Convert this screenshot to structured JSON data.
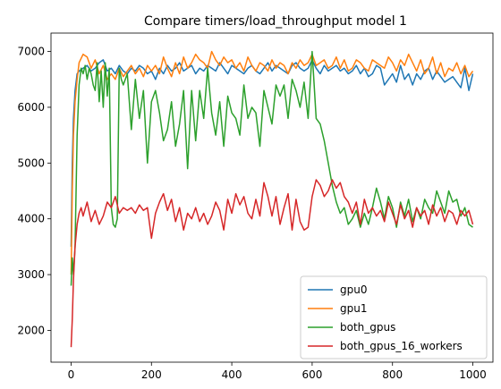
{
  "chart_data": {
    "type": "line",
    "title": "Compare timers/load_throughput model 1",
    "xlabel": "",
    "ylabel": "",
    "xlim": [
      -50,
      1050
    ],
    "ylim": [
      1430,
      7330
    ],
    "xticks": [
      0,
      200,
      400,
      600,
      800,
      1000
    ],
    "yticks": [
      2000,
      3000,
      4000,
      5000,
      6000,
      7000
    ],
    "legend": "lower-right",
    "series": [
      {
        "name": "gpu0",
        "color": "#1f77b4",
        "x": [
          0,
          3,
          6,
          10,
          15,
          20,
          30,
          40,
          50,
          60,
          70,
          80,
          90,
          100,
          110,
          120,
          130,
          140,
          150,
          160,
          170,
          180,
          190,
          200,
          210,
          220,
          230,
          240,
          250,
          260,
          270,
          280,
          290,
          300,
          310,
          320,
          330,
          340,
          350,
          360,
          370,
          380,
          390,
          400,
          410,
          420,
          430,
          440,
          450,
          460,
          470,
          480,
          490,
          500,
          510,
          520,
          530,
          540,
          550,
          560,
          570,
          580,
          590,
          600,
          610,
          620,
          630,
          640,
          650,
          660,
          670,
          680,
          690,
          700,
          710,
          720,
          730,
          740,
          750,
          760,
          770,
          780,
          790,
          800,
          810,
          820,
          830,
          840,
          850,
          860,
          870,
          880,
          890,
          900,
          910,
          920,
          930,
          940,
          950,
          960,
          970,
          980,
          990,
          1000
        ],
        "y": [
          3500,
          5000,
          5800,
          6300,
          6600,
          6650,
          6700,
          6750,
          6650,
          6700,
          6800,
          6850,
          6650,
          6700,
          6600,
          6750,
          6650,
          6600,
          6700,
          6650,
          6750,
          6700,
          6600,
          6650,
          6500,
          6700,
          6600,
          6750,
          6650,
          6700,
          6800,
          6650,
          6700,
          6750,
          6600,
          6700,
          6650,
          6750,
          6700,
          6650,
          6800,
          6700,
          6600,
          6750,
          6700,
          6650,
          6600,
          6700,
          6750,
          6650,
          6600,
          6700,
          6800,
          6650,
          6750,
          6700,
          6650,
          6600,
          6750,
          6800,
          6700,
          6650,
          6700,
          6850,
          6700,
          6600,
          6750,
          6650,
          6700,
          6750,
          6650,
          6700,
          6600,
          6650,
          6750,
          6600,
          6700,
          6550,
          6600,
          6750,
          6700,
          6400,
          6500,
          6600,
          6450,
          6750,
          6500,
          6600,
          6400,
          6600,
          6500,
          6650,
          6700,
          6500,
          6650,
          6550,
          6450,
          6500,
          6550,
          6450,
          6350,
          6700,
          6300,
          6600
        ]
      },
      {
        "name": "gpu1",
        "color": "#ff7f0e",
        "x": [
          0,
          3,
          6,
          10,
          15,
          20,
          30,
          40,
          50,
          60,
          70,
          80,
          90,
          100,
          110,
          120,
          130,
          140,
          150,
          160,
          170,
          180,
          190,
          200,
          210,
          220,
          230,
          240,
          250,
          260,
          270,
          280,
          290,
          300,
          310,
          320,
          330,
          340,
          350,
          360,
          370,
          380,
          390,
          400,
          410,
          420,
          430,
          440,
          450,
          460,
          470,
          480,
          490,
          500,
          510,
          520,
          530,
          540,
          550,
          560,
          570,
          580,
          590,
          600,
          610,
          620,
          630,
          640,
          650,
          660,
          670,
          680,
          690,
          700,
          710,
          720,
          730,
          740,
          750,
          760,
          770,
          780,
          790,
          800,
          810,
          820,
          830,
          840,
          850,
          860,
          870,
          880,
          890,
          900,
          910,
          920,
          930,
          940,
          950,
          960,
          970,
          980,
          990,
          1000
        ],
        "y": [
          3000,
          4500,
          5500,
          6100,
          6500,
          6800,
          6950,
          6900,
          6700,
          6850,
          6600,
          6750,
          6500,
          6600,
          6500,
          6700,
          6550,
          6650,
          6750,
          6600,
          6700,
          6550,
          6750,
          6650,
          6750,
          6600,
          6900,
          6700,
          6550,
          6800,
          6600,
          6900,
          6700,
          6800,
          6950,
          6850,
          6800,
          6700,
          7000,
          6850,
          6750,
          6900,
          6800,
          6850,
          6700,
          6800,
          6650,
          6900,
          6750,
          6650,
          6800,
          6750,
          6650,
          6850,
          6700,
          6800,
          6750,
          6600,
          6800,
          6700,
          6850,
          6750,
          6800,
          6950,
          6750,
          6800,
          6850,
          6700,
          6750,
          6900,
          6700,
          6850,
          6650,
          6700,
          6850,
          6800,
          6700,
          6650,
          6850,
          6800,
          6750,
          6700,
          6900,
          6800,
          6650,
          6850,
          6750,
          6950,
          6800,
          6650,
          6850,
          6600,
          6700,
          6900,
          6600,
          6800,
          6550,
          6700,
          6650,
          6800,
          6600,
          6750,
          6550,
          6650
        ]
      },
      {
        "name": "both_gpus",
        "color": "#2ca02c",
        "x": [
          0,
          3,
          6,
          10,
          15,
          20,
          25,
          30,
          35,
          40,
          45,
          50,
          55,
          60,
          65,
          70,
          75,
          80,
          85,
          90,
          95,
          100,
          105,
          110,
          115,
          120,
          125,
          130,
          140,
          150,
          160,
          170,
          180,
          190,
          200,
          210,
          220,
          230,
          240,
          250,
          260,
          270,
          280,
          290,
          300,
          310,
          320,
          330,
          340,
          350,
          360,
          370,
          380,
          390,
          400,
          410,
          420,
          430,
          440,
          450,
          460,
          470,
          480,
          490,
          500,
          510,
          520,
          530,
          540,
          550,
          560,
          570,
          580,
          590,
          600,
          610,
          620,
          630,
          640,
          650,
          660,
          670,
          680,
          690,
          700,
          710,
          720,
          730,
          740,
          750,
          760,
          770,
          780,
          790,
          800,
          810,
          820,
          830,
          840,
          850,
          860,
          870,
          880,
          890,
          900,
          910,
          920,
          930,
          940,
          950,
          960,
          970,
          980,
          990,
          1000
        ],
        "y": [
          2800,
          3300,
          3000,
          3500,
          5500,
          6400,
          6700,
          6600,
          6750,
          6500,
          6700,
          6600,
          6400,
          6300,
          6800,
          6100,
          6650,
          6000,
          6800,
          6200,
          6700,
          4200,
          3900,
          3850,
          4000,
          6700,
          6500,
          6400,
          6600,
          5600,
          6500,
          5800,
          6300,
          5000,
          6100,
          6300,
          5900,
          5400,
          5600,
          6100,
          5300,
          5700,
          6300,
          4900,
          6300,
          5400,
          6300,
          5800,
          6700,
          5900,
          5500,
          6100,
          5300,
          6200,
          5900,
          5800,
          5500,
          6400,
          5800,
          6000,
          5900,
          5300,
          6300,
          6000,
          5700,
          6400,
          6200,
          6400,
          5800,
          6500,
          6300,
          6000,
          6450,
          5800,
          7000,
          5800,
          5700,
          5400,
          5000,
          4600,
          4300,
          4100,
          4200,
          3900,
          4000,
          4150,
          3850,
          4100,
          3900,
          4200,
          4550,
          4300,
          4000,
          4400,
          4200,
          3850,
          4300,
          4050,
          4350,
          3950,
          4200,
          4000,
          4350,
          4200,
          4100,
          4500,
          4300,
          4100,
          4500,
          4300,
          4350,
          4050,
          4200,
          3900,
          3850
        ]
      },
      {
        "name": "both_gpus_16_workers",
        "color": "#d62728",
        "x": [
          0,
          3,
          6,
          10,
          15,
          20,
          25,
          30,
          40,
          50,
          60,
          70,
          80,
          90,
          100,
          110,
          120,
          130,
          140,
          150,
          160,
          170,
          180,
          190,
          200,
          210,
          220,
          230,
          240,
          250,
          260,
          270,
          280,
          290,
          300,
          310,
          320,
          330,
          340,
          350,
          360,
          370,
          380,
          390,
          400,
          410,
          420,
          430,
          440,
          450,
          460,
          470,
          480,
          490,
          500,
          510,
          520,
          530,
          540,
          550,
          560,
          570,
          580,
          590,
          600,
          610,
          620,
          630,
          640,
          650,
          660,
          670,
          680,
          690,
          700,
          710,
          720,
          730,
          740,
          750,
          760,
          770,
          780,
          790,
          800,
          810,
          820,
          830,
          840,
          850,
          860,
          870,
          880,
          890,
          900,
          910,
          920,
          930,
          940,
          950,
          960,
          970,
          980,
          990,
          1000
        ],
        "y": [
          1700,
          2200,
          2900,
          3500,
          3900,
          4100,
          4200,
          4050,
          4300,
          3950,
          4150,
          3900,
          4050,
          4300,
          4200,
          4400,
          4100,
          4200,
          4150,
          4200,
          4100,
          4250,
          4150,
          4200,
          3650,
          4100,
          4300,
          4450,
          4150,
          4350,
          3950,
          4200,
          3800,
          4100,
          4000,
          4200,
          3950,
          4100,
          3900,
          4050,
          4300,
          4150,
          3800,
          4350,
          4100,
          4450,
          4250,
          4400,
          4100,
          4000,
          4350,
          4050,
          4650,
          4400,
          4050,
          4400,
          3900,
          4200,
          4450,
          3800,
          4350,
          3950,
          3800,
          3850,
          4400,
          4700,
          4600,
          4400,
          4500,
          4700,
          4550,
          4650,
          4400,
          4300,
          4100,
          4300,
          3900,
          4350,
          4100,
          4200,
          4050,
          4150,
          3950,
          4300,
          4100,
          3900,
          4250,
          4000,
          4150,
          3850,
          4200,
          4050,
          4150,
          3900,
          4250,
          4050,
          4200,
          3950,
          4150,
          4100,
          3900,
          4150,
          4050,
          4150,
          3900
        ]
      }
    ]
  }
}
